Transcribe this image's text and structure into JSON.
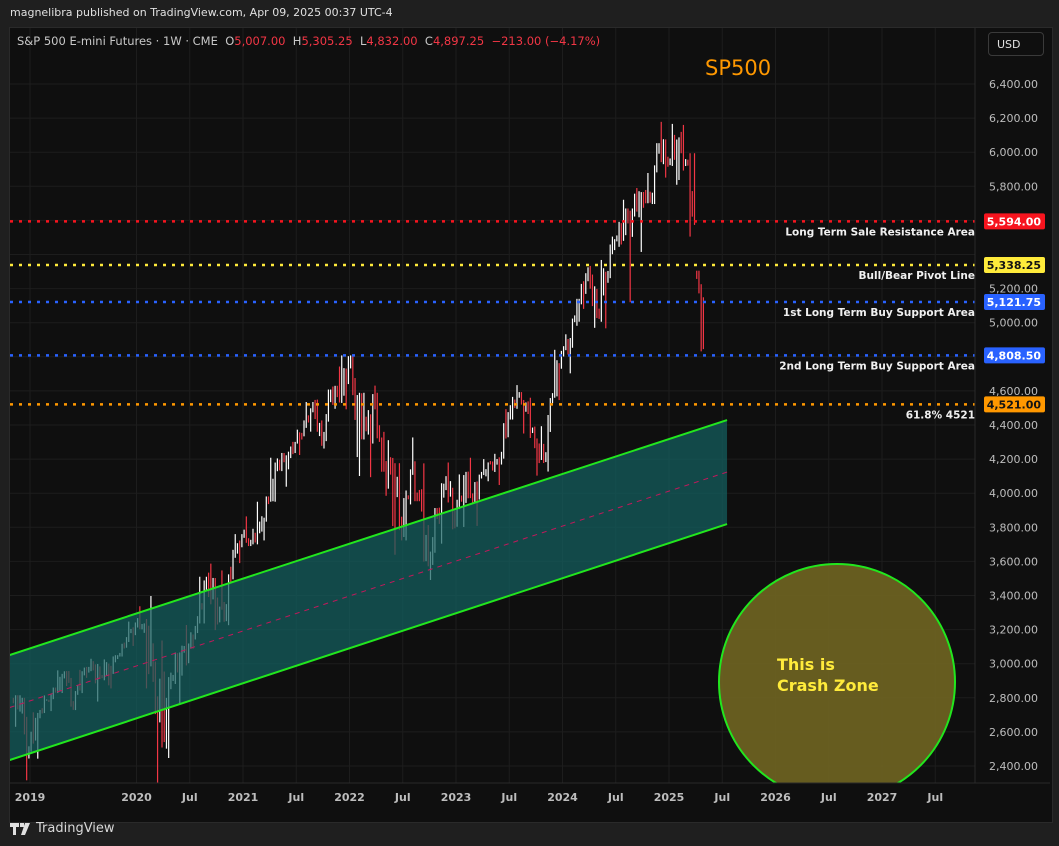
{
  "header": {
    "published": "magnelibra published on TradingView.com, Apr 09, 2025 00:37 UTC-4"
  },
  "legend": {
    "symbol": "S&P 500 E-mini Futures · 1W · CME",
    "o_label": "O",
    "o": "5,007.00",
    "h_label": "H",
    "h": "5,305.25",
    "l_label": "L",
    "l": "4,832.00",
    "c_label": "C",
    "c": "4,897.25",
    "change": "−213.00 (−4.17%)"
  },
  "currency_button": "USD",
  "footer": {
    "brand": "TradingView"
  },
  "chart_data": {
    "type": "candlestick",
    "title": "SP500",
    "title_color": "#ff9800",
    "ylim": [
      2300,
      6500
    ],
    "price_ticks": [
      2400,
      2600,
      2800,
      3000,
      3200,
      3400,
      3600,
      3800,
      4000,
      4200,
      4400,
      4600,
      4800,
      5000,
      5200,
      5400,
      5600,
      5800,
      6000,
      6200,
      6400
    ],
    "price_tick_labels": [
      "2,400.00",
      "2,600.00",
      "2,800.00",
      "3,000.00",
      "3,200.00",
      "3,400.00",
      "3,600.00",
      "3,800.00",
      "4,000.00",
      "4,200.00",
      "4,400.00",
      "4,600.00",
      "4,800.00",
      "5,000.00",
      "5,200.00",
      "5,400.00",
      "5,600.00",
      "5,800.00",
      "6,000.00",
      "6,200.00",
      "6,400.00"
    ],
    "time_ticks": [
      {
        "t": 2019,
        "label": "2019"
      },
      {
        "t": 2020,
        "label": "2020"
      },
      {
        "t": 2020.5,
        "label": "Jul"
      },
      {
        "t": 2021,
        "label": "2021"
      },
      {
        "t": 2021.5,
        "label": "Jul"
      },
      {
        "t": 2022,
        "label": "2022"
      },
      {
        "t": 2022.5,
        "label": "Jul"
      },
      {
        "t": 2023,
        "label": "2023"
      },
      {
        "t": 2023.5,
        "label": "Jul"
      },
      {
        "t": 2024,
        "label": "2024"
      },
      {
        "t": 2024.5,
        "label": "Jul"
      },
      {
        "t": 2025,
        "label": "2025"
      },
      {
        "t": 2025.5,
        "label": "Jul"
      },
      {
        "t": 2026,
        "label": "2026"
      },
      {
        "t": 2026.5,
        "label": "Jul"
      },
      {
        "t": 2027,
        "label": "2027"
      },
      {
        "t": 2027.5,
        "label": "Jul"
      }
    ],
    "up_color": "#ffffff",
    "down_color": "#f23645",
    "monthly_ohlc_note_fields": [
      "month",
      "close",
      "high",
      "low"
    ],
    "monthly": [
      [
        "2018-11",
        2760,
        2815,
        2630
      ],
      [
        "2018-12",
        2505,
        2800,
        2316
      ],
      [
        "2019-01",
        2704,
        2715,
        2443
      ],
      [
        "2019-02",
        2786,
        2814,
        2680
      ],
      [
        "2019-03",
        2836,
        2860,
        2722
      ],
      [
        "2019-04",
        2950,
        2961,
        2828
      ],
      [
        "2019-05",
        2752,
        2957,
        2729
      ],
      [
        "2019-06",
        2944,
        2964,
        2728
      ],
      [
        "2019-07",
        2982,
        3029,
        2917
      ],
      [
        "2019-08",
        2926,
        3015,
        2778
      ],
      [
        "2019-09",
        2977,
        3025,
        2873
      ],
      [
        "2019-10",
        3038,
        3050,
        2855
      ],
      [
        "2019-11",
        3142,
        3156,
        3042
      ],
      [
        "2019-12",
        3231,
        3247,
        3104
      ],
      [
        "2020-01",
        3224,
        3337,
        3181
      ],
      [
        "2020-02",
        2951,
        3397,
        2855
      ],
      [
        "2020-03",
        2569,
        3136,
        2300
      ],
      [
        "2020-04",
        2902,
        2954,
        2447
      ],
      [
        "2020-05",
        3045,
        3066,
        2765
      ],
      [
        "2020-06",
        3090,
        3227,
        2930
      ],
      [
        "2020-07",
        3263,
        3279,
        3088
      ],
      [
        "2020-08",
        3497,
        3510,
        3236
      ],
      [
        "2020-09",
        3357,
        3587,
        3197
      ],
      [
        "2020-10",
        3270,
        3547,
        3230
      ],
      [
        "2020-11",
        3622,
        3668,
        3226
      ],
      [
        "2020-12",
        3748,
        3760,
        3590
      ],
      [
        "2021-01",
        3707,
        3864,
        3690
      ],
      [
        "2021-02",
        3805,
        3950,
        3700
      ],
      [
        "2021-03",
        3967,
        3981,
        3723
      ],
      [
        "2021-04",
        4174,
        4208,
        3950
      ],
      [
        "2021-05",
        4199,
        4236,
        4038
      ],
      [
        "2021-06",
        4291,
        4301,
        4140
      ],
      [
        "2021-07",
        4392,
        4427,
        4224
      ],
      [
        "2021-08",
        4515,
        4535,
        4361
      ],
      [
        "2021-09",
        4297,
        4549,
        4278
      ],
      [
        "2021-10",
        4596,
        4608,
        4262
      ],
      [
        "2021-11",
        4560,
        4743,
        4495
      ],
      [
        "2021-12",
        4766,
        4808,
        4492
      ],
      [
        "2022-01",
        4505,
        4808,
        4212
      ],
      [
        "2022-02",
        4368,
        4589,
        4101
      ],
      [
        "2022-03",
        4524,
        4631,
        4094
      ],
      [
        "2022-04",
        4129,
        4589,
        4126
      ],
      [
        "2022-05",
        4130,
        4311,
        3807
      ],
      [
        "2022-06",
        3785,
        4176,
        3639
      ],
      [
        "2022-07",
        4131,
        4140,
        3723
      ],
      [
        "2022-08",
        3955,
        4327,
        3953
      ],
      [
        "2022-09",
        3586,
        4175,
        3571
      ],
      [
        "2022-10",
        3872,
        3913,
        3491
      ],
      [
        "2022-11",
        4080,
        4100,
        3704
      ],
      [
        "2022-12",
        3840,
        4180,
        3788
      ],
      [
        "2023-01",
        4077,
        4110,
        3802
      ],
      [
        "2023-02",
        3970,
        4208,
        3943
      ],
      [
        "2023-03",
        4109,
        4125,
        3808
      ],
      [
        "2023-04",
        4169,
        4200,
        4070
      ],
      [
        "2023-05",
        4180,
        4231,
        4048
      ],
      [
        "2023-06",
        4450,
        4493,
        4168
      ],
      [
        "2023-07",
        4589,
        4634,
        4432
      ],
      [
        "2023-08",
        4515,
        4593,
        4350
      ],
      [
        "2023-09",
        4299,
        4560,
        4264
      ],
      [
        "2023-10",
        4194,
        4393,
        4103
      ],
      [
        "2023-11",
        4568,
        4587,
        4127
      ],
      [
        "2023-12",
        4819,
        4841,
        4546
      ],
      [
        "2024-01",
        4899,
        4932,
        4703
      ],
      [
        "2024-02",
        5137,
        5140,
        4853
      ],
      [
        "2024-03",
        5308,
        5325,
        5081
      ],
      [
        "2024-04",
        5064,
        5333,
        4970
      ],
      [
        "2024-05",
        5283,
        5368,
        4967
      ],
      [
        "2024-06",
        5483,
        5505,
        5234
      ],
      [
        "2024-07",
        5552,
        5721,
        5445
      ],
      [
        "2024-08",
        5662,
        5670,
        5120
      ],
      [
        "2024-09",
        5762,
        5790,
        5415
      ],
      [
        "2024-10",
        5728,
        5878,
        5674
      ],
      [
        "2024-11",
        6051,
        6053,
        5696
      ],
      [
        "2024-12",
        5937,
        6178,
        5851
      ],
      [
        "2025-01",
        6071,
        6166,
        5809
      ],
      [
        "2025-02",
        5955,
        6160,
        5837
      ],
      [
        "2025-03",
        5612,
        5994,
        5505
      ],
      [
        "2025-04",
        4897,
        5305,
        4832
      ]
    ],
    "levels": [
      {
        "price": 5594.0,
        "tag": "5,594.00",
        "label": "Long Term Sale Resistance Area",
        "color": "#f7141e",
        "tag_text_color": "#ffffff"
      },
      {
        "price": 5338.25,
        "tag": "5,338.25",
        "label": "Bull/Bear Pivot Line",
        "color": "#ffeb3b",
        "tag_text_color": "#131313"
      },
      {
        "price": 5121.75,
        "tag": "5,121.75",
        "label": "1st Long Term Buy Support Area",
        "color": "#2962ff",
        "tag_text_color": "#ffffff"
      },
      {
        "price": 4808.5,
        "tag": "4,808.50",
        "label": "2nd Long Term Buy Support Area",
        "color": "#2962ff",
        "tag_text_color": "#ffffff"
      },
      {
        "price": 4521.0,
        "tag": "4,521.00",
        "label": "61.8% 4521",
        "color": "#ff9800",
        "tag_text_color": "#131313"
      }
    ],
    "channel": {
      "upper": [
        [
          2018.81,
          3051
        ],
        [
          2025.545,
          4429
        ]
      ],
      "lower": [
        [
          2018.81,
          2435
        ],
        [
          2025.545,
          3819
        ]
      ],
      "line_color": "#22e61e",
      "fill_color": "#136060",
      "mid_color": "#c2185b"
    },
    "crash_zone": {
      "text_line1": "This is",
      "text_line2": "Crash Zone",
      "fill_color": "#6b6121",
      "border_color": "#22e61e",
      "text_color": "#ffeb3b"
    }
  }
}
